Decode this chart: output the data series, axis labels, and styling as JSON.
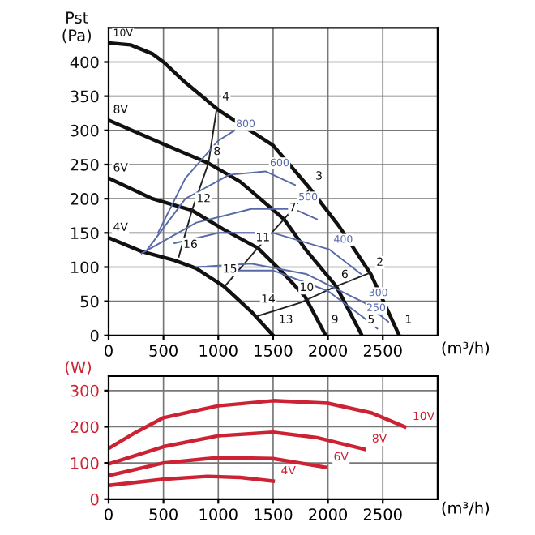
{
  "chart_data": [
    {
      "type": "line",
      "xlabel": "(m³/h)",
      "ylabel": "Pst\n(Pa)",
      "xlim": [
        0,
        3000
      ],
      "ylim": [
        0,
        450
      ],
      "xticks": [
        0,
        500,
        1000,
        1500,
        2000,
        2500
      ],
      "yticks": [
        0,
        50,
        100,
        150,
        200,
        250,
        300,
        350,
        400
      ],
      "grid": true,
      "legend": false,
      "series": [
        {
          "color": "#111111",
          "x": [
            0,
            200,
            400,
            500,
            700,
            1000,
            1500,
            1836,
            2100,
            2390,
            2650
          ],
          "values": [
            428,
            425,
            412,
            400,
            370,
            330,
            278,
            215,
            160,
            90,
            0
          ]
        },
        {
          "color": "#111111",
          "x": [
            0,
            500,
            910,
            1200,
            1600,
            1800,
            2075,
            2310
          ],
          "values": [
            315,
            280,
            252,
            225,
            170,
            125,
            72,
            0
          ]
        },
        {
          "color": "#111111",
          "x": [
            0,
            400,
            760,
            1050,
            1360,
            1600,
            1790,
            1980
          ],
          "values": [
            230,
            200,
            183,
            155,
            128,
            90,
            57,
            0
          ]
        },
        {
          "color": "#111111",
          "x": [
            0,
            300,
            600,
            800,
            1050,
            1300,
            1500
          ],
          "values": [
            143,
            123,
            110,
            98,
            72,
            35,
            0
          ]
        },
        {
          "color": "#222222",
          "x": [
            640,
            760,
            910,
            985
          ],
          "values": [
            115,
            183,
            252,
            331
          ]
        },
        {
          "color": "#222222",
          "x": [
            1060,
            1360,
            1600,
            1836
          ],
          "values": [
            72,
            128,
            170,
            215
          ]
        },
        {
          "color": "#222222",
          "x": [
            1350,
            1750,
            2075,
            2390
          ],
          "values": [
            28,
            48,
            72,
            92
          ]
        },
        {
          "color": "#5a6aa8",
          "x": [
            450,
            700,
            1000,
            1150
          ],
          "values": [
            150,
            230,
            285,
            300
          ]
        },
        {
          "color": "#5a6aa8",
          "x": [
            350,
            700,
            1100,
            1430,
            1700
          ],
          "values": [
            125,
            200,
            235,
            240,
            220
          ]
        },
        {
          "color": "#5a6aa8",
          "x": [
            300,
            800,
            1300,
            1690,
            1900
          ],
          "values": [
            120,
            165,
            185,
            185,
            170
          ]
        },
        {
          "color": "#5a6aa8",
          "x": [
            600,
            1000,
            1500,
            2010,
            2300
          ],
          "values": [
            135,
            150,
            150,
            126,
            90
          ]
        },
        {
          "color": "#5a6aa8",
          "x": [
            800,
            1300,
            1800,
            2330,
            2550
          ],
          "values": [
            100,
            105,
            90,
            48,
            20
          ]
        },
        {
          "color": "#5a6aa8",
          "x": [
            1050,
            1500,
            2000,
            2310,
            2450
          ],
          "values": [
            95,
            95,
            65,
            28,
            10
          ]
        }
      ],
      "annotations": [
        {
          "text": "10V",
          "x": 0,
          "y": 428
        },
        {
          "text": "8V",
          "x": 0,
          "y": 315
        },
        {
          "text": "6V",
          "x": 0,
          "y": 230
        },
        {
          "text": "4V",
          "x": 0,
          "y": 143
        },
        {
          "text": "1",
          "x": 2660,
          "y": 8
        },
        {
          "text": "2",
          "x": 2400,
          "y": 92
        },
        {
          "text": "3",
          "x": 1845,
          "y": 218
        },
        {
          "text": "4",
          "x": 995,
          "y": 334
        },
        {
          "text": "5",
          "x": 2320,
          "y": 8
        },
        {
          "text": "6",
          "x": 2080,
          "y": 74
        },
        {
          "text": "7",
          "x": 1605,
          "y": 172
        },
        {
          "text": "8",
          "x": 915,
          "y": 254
        },
        {
          "text": "9",
          "x": 1990,
          "y": 8
        },
        {
          "text": "10",
          "x": 1700,
          "y": 55
        },
        {
          "text": "11",
          "x": 1300,
          "y": 128
        },
        {
          "text": "12",
          "x": 760,
          "y": 185
        },
        {
          "text": "13",
          "x": 1510,
          "y": 8
        },
        {
          "text": "14",
          "x": 1350,
          "y": 38
        },
        {
          "text": "15",
          "x": 1000,
          "y": 82
        },
        {
          "text": "16",
          "x": 640,
          "y": 118
        },
        {
          "text": "800",
          "x": 1120,
          "y": 295
        },
        {
          "text": "600",
          "x": 1430,
          "y": 238
        },
        {
          "text": "500",
          "x": 1690,
          "y": 188
        },
        {
          "text": "400",
          "x": 2010,
          "y": 126
        },
        {
          "text": "300",
          "x": 2330,
          "y": 48
        },
        {
          "text": "250",
          "x": 2310,
          "y": 26
        }
      ]
    },
    {
      "type": "line",
      "xlabel": "(m³/h)",
      "ylabel": "(W)",
      "xlim": [
        0,
        3000
      ],
      "ylim": [
        0,
        340
      ],
      "xticks": [
        0,
        500,
        1000,
        1500,
        2000,
        2500
      ],
      "yticks": [
        0,
        100,
        200,
        300
      ],
      "grid": true,
      "legend": false,
      "series": [
        {
          "color": "#cc2233",
          "x": [
            0,
            250,
            500,
            1000,
            1500,
            2000,
            2400,
            2700
          ],
          "values": [
            140,
            185,
            225,
            258,
            272,
            265,
            238,
            200
          ]
        },
        {
          "color": "#cc2233",
          "x": [
            0,
            500,
            1000,
            1500,
            1900,
            2330
          ],
          "values": [
            97,
            145,
            175,
            185,
            170,
            138
          ]
        },
        {
          "color": "#cc2233",
          "x": [
            0,
            500,
            1000,
            1500,
            1980
          ],
          "values": [
            65,
            100,
            115,
            112,
            88
          ]
        },
        {
          "color": "#cc2233",
          "x": [
            0,
            500,
            900,
            1200,
            1500
          ],
          "values": [
            38,
            55,
            63,
            60,
            50
          ]
        }
      ],
      "annotations": [
        {
          "text": "10V",
          "x": 2730,
          "y": 200
        },
        {
          "text": "8V",
          "x": 2360,
          "y": 138
        },
        {
          "text": "6V",
          "x": 2010,
          "y": 88
        },
        {
          "text": "4V",
          "x": 1530,
          "y": 50
        }
      ]
    }
  ]
}
